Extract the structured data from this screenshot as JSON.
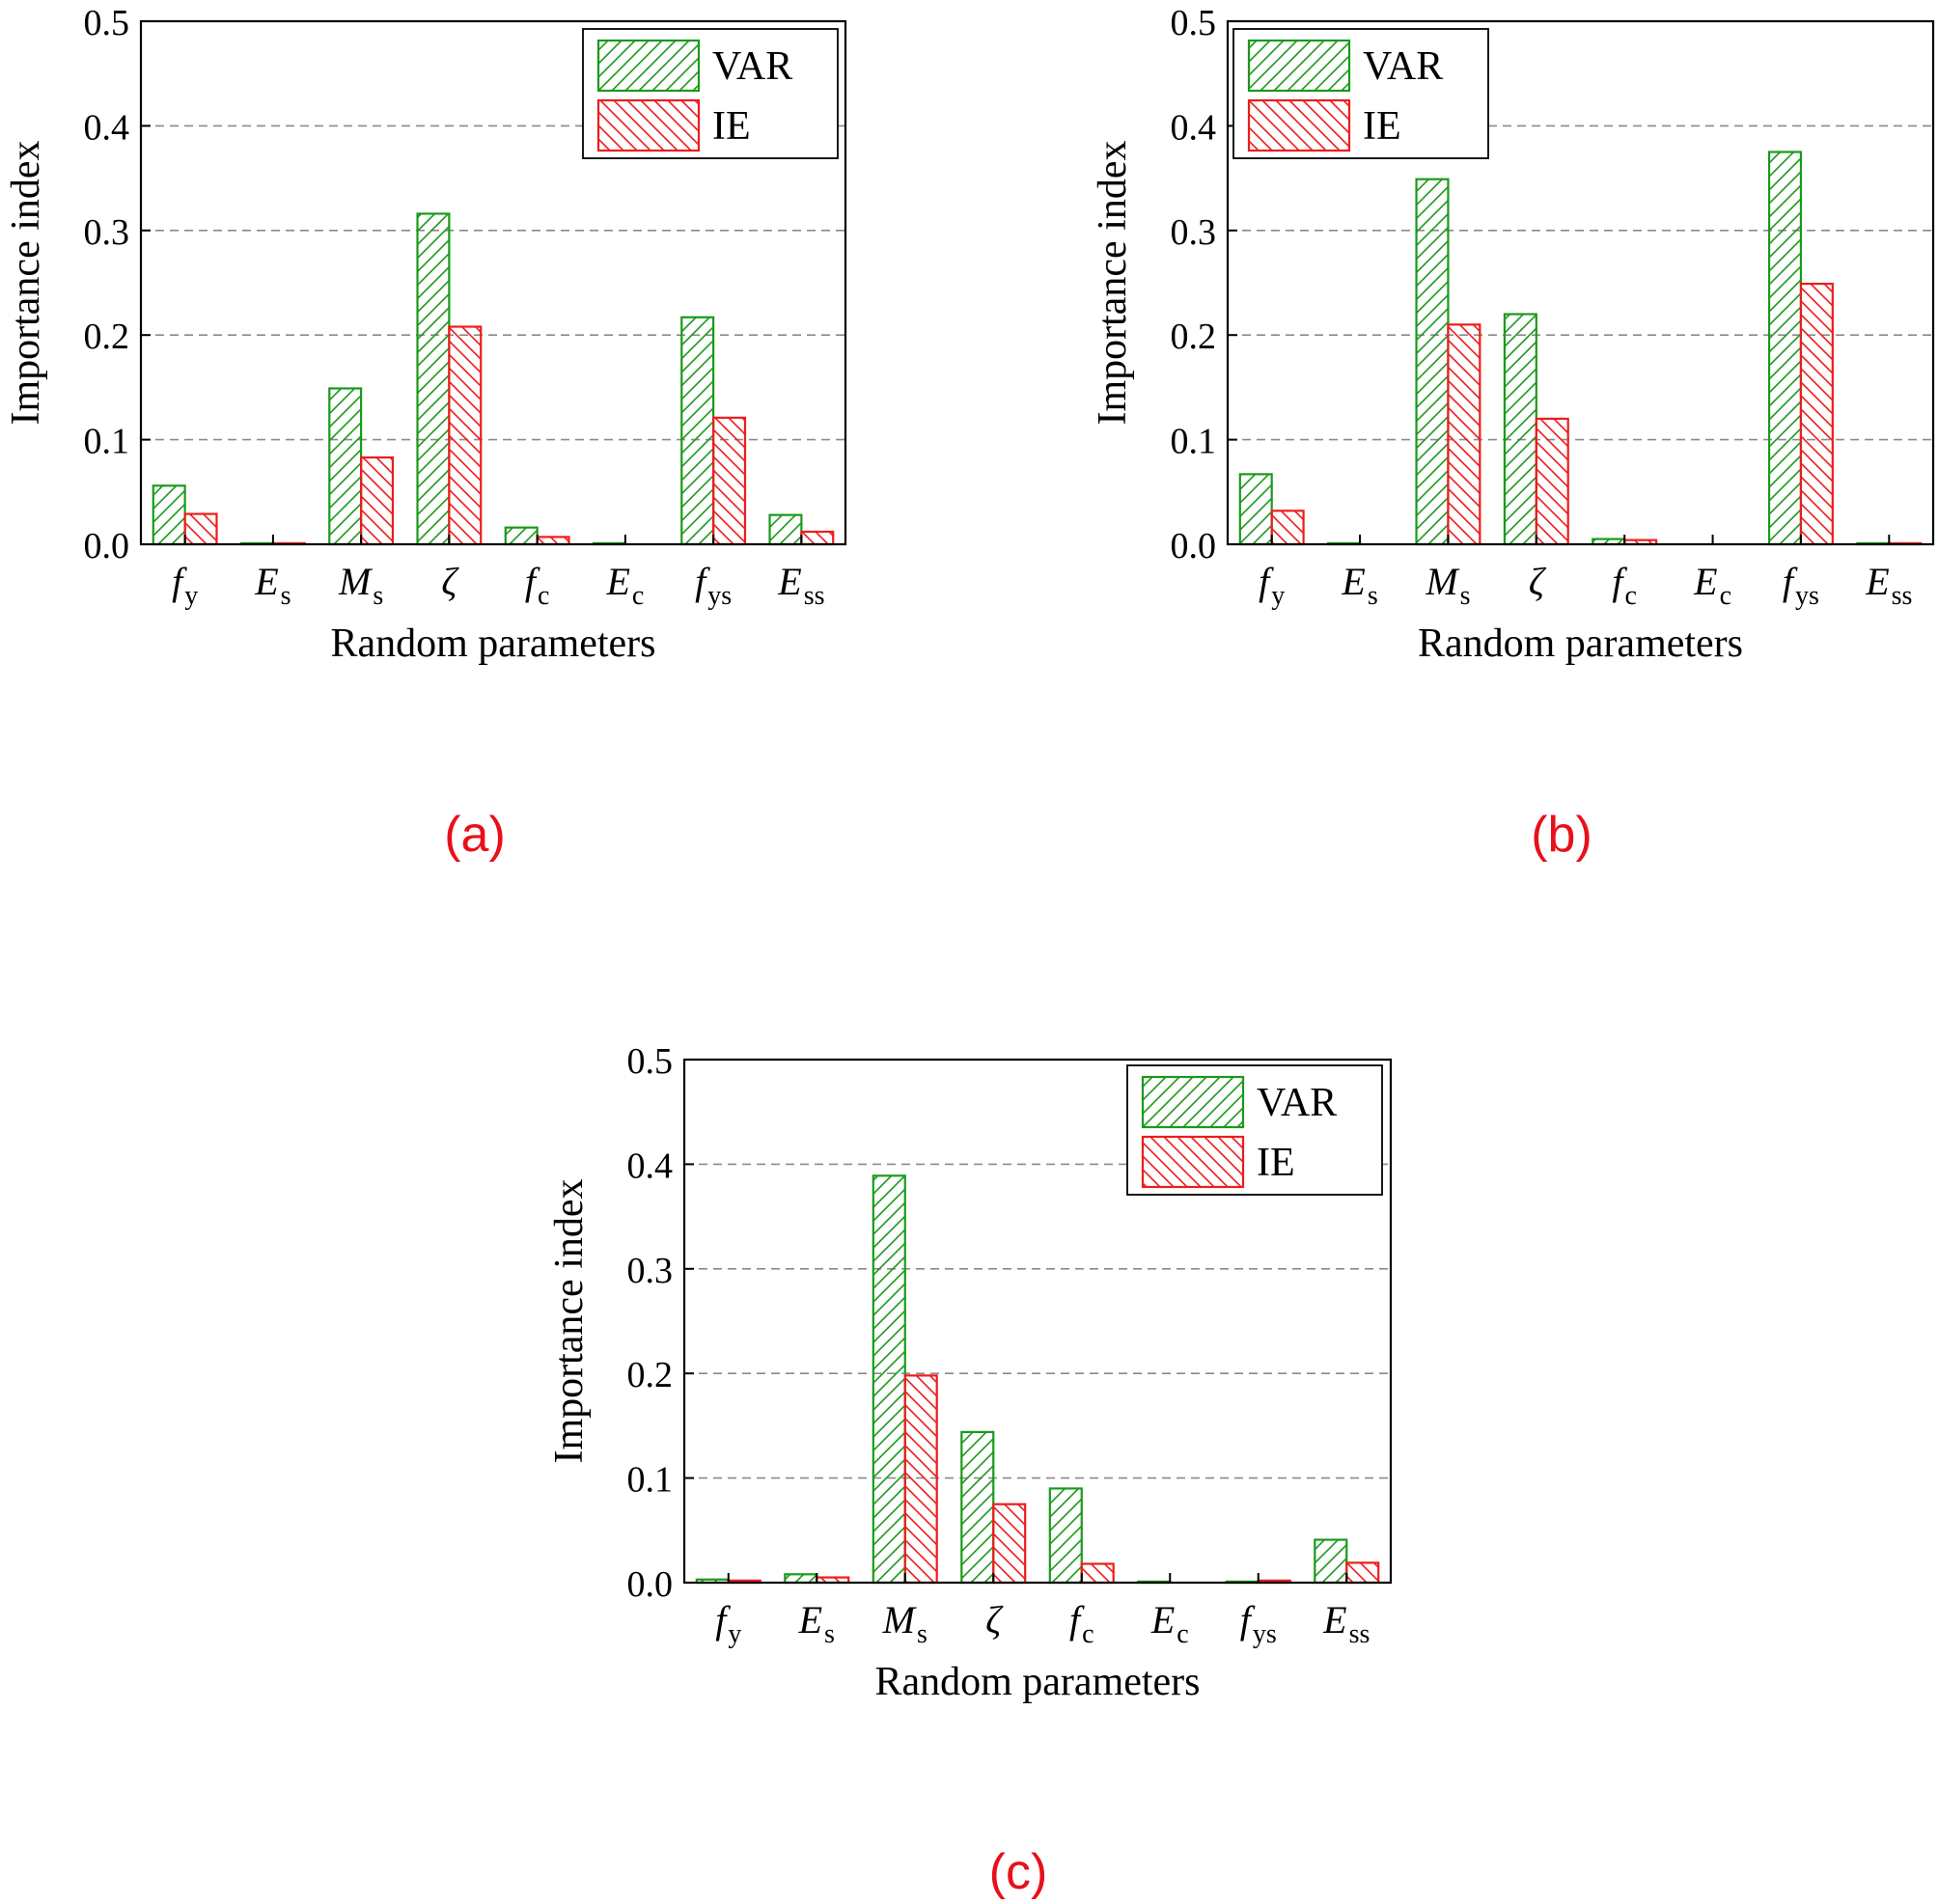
{
  "colors": {
    "var": "#1a9a1a",
    "ie": "#ee1c1c",
    "caption": "#e8101a",
    "axis": "#000000",
    "grid": "#8a8a8a"
  },
  "legend_labels": [
    "VAR",
    "IE"
  ],
  "chart_data": [
    {
      "type": "bar",
      "panel_label": "(a)",
      "ylabel": "Importance index",
      "xlabel": "Random parameters",
      "ylim": [
        0,
        0.5
      ],
      "yticks": [
        "0.0",
        "0.1",
        "0.2",
        "0.3",
        "0.4",
        "0.5"
      ],
      "grid": "horizontal dashed",
      "legend_position": "top-right",
      "categories": [
        {
          "base": "f",
          "sub": "y"
        },
        {
          "base": "E",
          "sub": "s"
        },
        {
          "base": "M",
          "sub": "s"
        },
        {
          "base": "ζ",
          "sub": ""
        },
        {
          "base": "f",
          "sub": "c"
        },
        {
          "base": "E",
          "sub": "c"
        },
        {
          "base": "f",
          "sub": "ys"
        },
        {
          "base": "E",
          "sub": "ss"
        }
      ],
      "series": [
        {
          "name": "VAR",
          "values": [
            0.056,
            0.001,
            0.149,
            0.316,
            0.016,
            0.001,
            0.217,
            0.028
          ]
        },
        {
          "name": "IE",
          "values": [
            0.029,
            0.001,
            0.083,
            0.208,
            0.007,
            0.0,
            0.121,
            0.012
          ]
        }
      ]
    },
    {
      "type": "bar",
      "panel_label": "(b)",
      "ylabel": "Importance index",
      "xlabel": "Random parameters",
      "ylim": [
        0,
        0.5
      ],
      "yticks": [
        "0.0",
        "0.1",
        "0.2",
        "0.3",
        "0.4",
        "0.5"
      ],
      "grid": "horizontal dashed",
      "legend_position": "top-left",
      "categories": [
        {
          "base": "f",
          "sub": "y"
        },
        {
          "base": "E",
          "sub": "s"
        },
        {
          "base": "M",
          "sub": "s"
        },
        {
          "base": "ζ",
          "sub": ""
        },
        {
          "base": "f",
          "sub": "c"
        },
        {
          "base": "E",
          "sub": "c"
        },
        {
          "base": "f",
          "sub": "ys"
        },
        {
          "base": "E",
          "sub": "ss"
        }
      ],
      "series": [
        {
          "name": "VAR",
          "values": [
            0.067,
            0.001,
            0.349,
            0.22,
            0.005,
            0.0,
            0.375,
            0.001
          ]
        },
        {
          "name": "IE",
          "values": [
            0.032,
            0.0,
            0.21,
            0.12,
            0.004,
            0.0,
            0.249,
            0.001
          ]
        }
      ]
    },
    {
      "type": "bar",
      "panel_label": "(c)",
      "ylabel": "Importance index",
      "xlabel": "Random parameters",
      "ylim": [
        0,
        0.5
      ],
      "yticks": [
        "0.0",
        "0.1",
        "0.2",
        "0.3",
        "0.4",
        "0.5"
      ],
      "grid": "horizontal dashed",
      "legend_position": "top-right",
      "categories": [
        {
          "base": "f",
          "sub": "y"
        },
        {
          "base": "E",
          "sub": "s"
        },
        {
          "base": "M",
          "sub": "s"
        },
        {
          "base": "ζ",
          "sub": ""
        },
        {
          "base": "f",
          "sub": "c"
        },
        {
          "base": "E",
          "sub": "c"
        },
        {
          "base": "f",
          "sub": "ys"
        },
        {
          "base": "E",
          "sub": "ss"
        }
      ],
      "series": [
        {
          "name": "VAR",
          "values": [
            0.003,
            0.008,
            0.389,
            0.144,
            0.09,
            0.001,
            0.001,
            0.041
          ]
        },
        {
          "name": "IE",
          "values": [
            0.002,
            0.005,
            0.198,
            0.075,
            0.018,
            0.0,
            0.002,
            0.019
          ]
        }
      ]
    }
  ]
}
